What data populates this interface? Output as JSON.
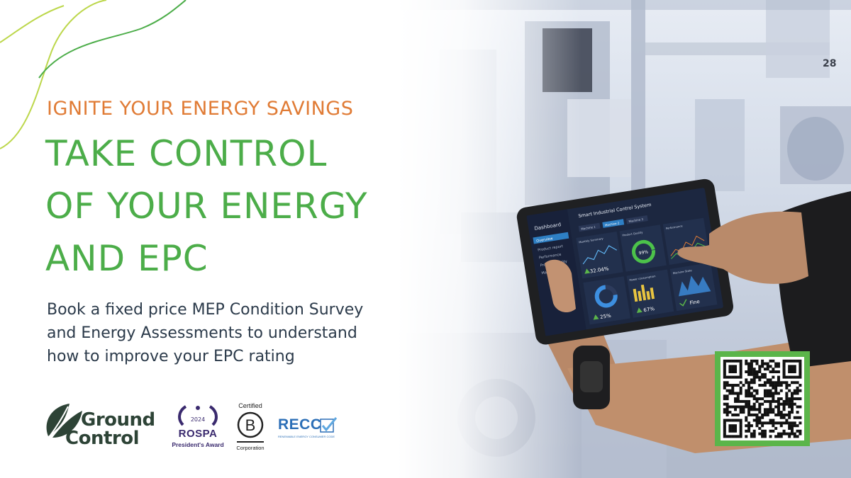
{
  "hero": {
    "kicker": "IGNITE YOUR ENERGY SAVINGS",
    "headline_lines": [
      "TAKE CONTROL",
      "OF YOUR ENERGY",
      "AND EPC"
    ],
    "body_lines": [
      "Book a fixed price MEP Condition Survey",
      "and Energy Assessments to understand",
      "how to improve your EPC rating"
    ]
  },
  "colors": {
    "accent_orange": "#e07b35",
    "brand_green": "#4cad49",
    "body_text": "#2b3a4a",
    "dashboard_bg": "#1c2740"
  },
  "logos": {
    "ground_control": {
      "line1": "Ground",
      "line2": "Control",
      "icon": "leaf-icon"
    },
    "rospa": {
      "year": "2024",
      "name": "ROSPA",
      "award": "President's Award",
      "icon": "laurel-icon"
    },
    "bcorp": {
      "certified": "Certified",
      "corporation": "Corporation",
      "icon": "b-corp-icon"
    },
    "recc": {
      "name": "RECC",
      "subtitle": "RENEWABLE ENERGY CONSUMER CODE",
      "icon": "checkmark-icon"
    }
  },
  "photo": {
    "machine_label": "28"
  },
  "tablet": {
    "title": "Smart Industrial Control System",
    "sidebar_title": "Dashboard",
    "sidebar_items": [
      "Overview",
      "Product report",
      "Performance",
      "Product Quality",
      "Machine State"
    ],
    "tabs": [
      "Machine 1",
      "Machine 2",
      "Machine 3"
    ],
    "panels": {
      "monthly": {
        "label": "Monthly Summary",
        "value": "32.04%"
      },
      "quality": {
        "label": "Product Quality",
        "value": "99%"
      },
      "performance": {
        "label": "Performance"
      },
      "donut": {
        "value": "25%"
      },
      "power": {
        "label": "Power consumption",
        "value": "67%"
      },
      "state": {
        "label": "Machine State",
        "value": "Fine"
      }
    }
  },
  "qr": {
    "icon": "qr-code-icon"
  }
}
